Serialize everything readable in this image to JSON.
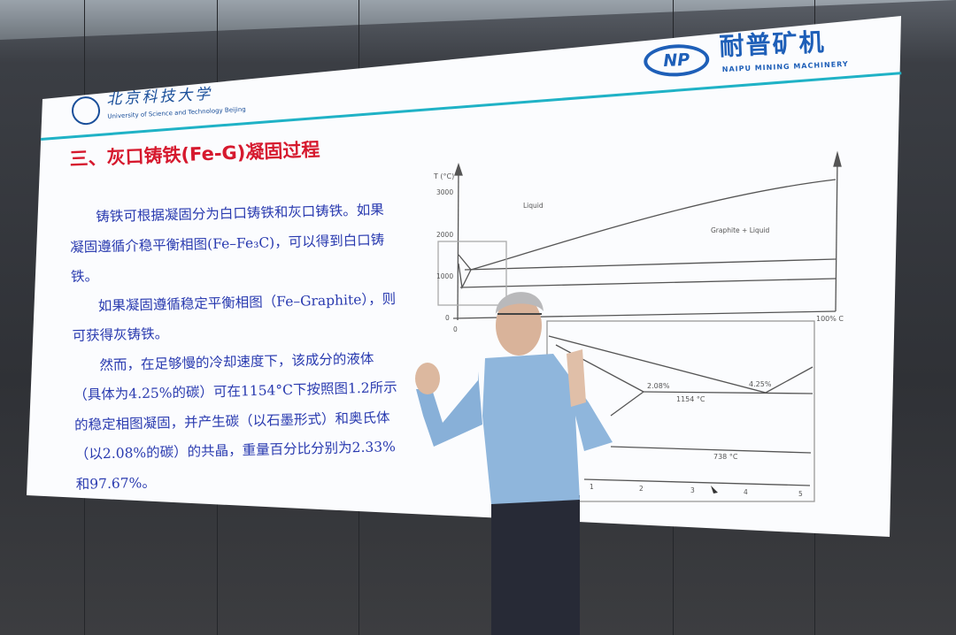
{
  "slide": {
    "title": "三、灰口铸铁(Fe-G)凝固过程",
    "university": {
      "name_cn": "北京科技大学",
      "name_en": "University of Science and Technology Beijing"
    },
    "company": {
      "logo_text": "NP",
      "name_cn": "耐普矿机",
      "name_en": "NAIPU MINING MACHINERY"
    },
    "paragraphs": [
      "铸铁可根据凝固分为白口铸铁和灰口铸铁。如果凝固遵循介稳平衡相图(Fe–Fe₃C)，可以得到白口铸铁。",
      "如果凝固遵循稳定平衡相图（Fe–Graphite），则可获得灰铸铁。",
      "然而，在足够慢的冷却速度下，该成分的液体（具体为4.25%的碳）可在1154°C下按照图1.2所示的稳定相图凝固，并产生碳（以石墨形式）和奥氏体（以2.08%的碳）的共晶，重量百分比分别为2.33%和97.67%。"
    ],
    "diagram_upper": {
      "y_label": "T (°C)",
      "y_ticks": [
        "3000",
        "2000",
        "1000",
        "0"
      ],
      "x_ticks": [
        "0",
        "100% C"
      ],
      "labels": [
        "Liquid",
        "Graphite + Liquid"
      ]
    },
    "diagram_lower": {
      "labels": [
        "2.08%",
        "1154 °C",
        "4.25%",
        "738 °C"
      ],
      "x_ticks": [
        "1",
        "2",
        "3",
        "4",
        "5"
      ]
    }
  },
  "colors": {
    "title": "#d6192e",
    "body_text": "#2a3bb0",
    "accent_line": "#1fb2c6",
    "logo_blue": "#1e5fb8",
    "shirt": "#8fb6dc"
  }
}
